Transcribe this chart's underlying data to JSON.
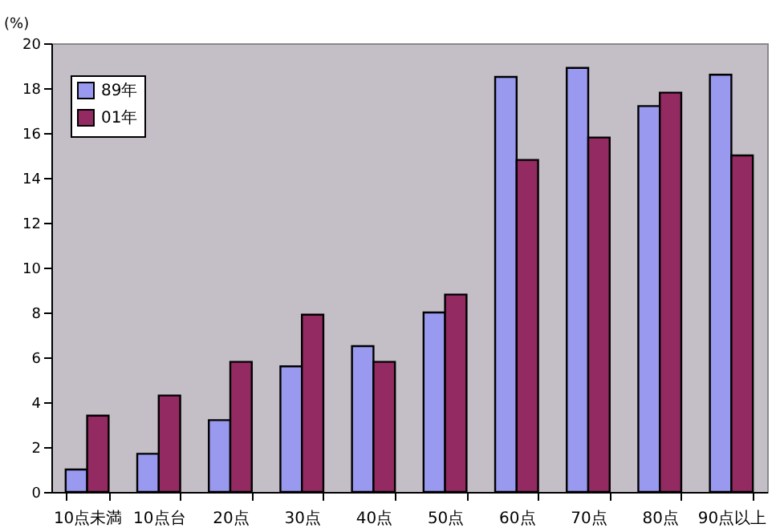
{
  "chart_data": {
    "type": "bar",
    "ylabel": "(%)",
    "categories": [
      "10点未満",
      "10点台",
      "20点",
      "30点",
      "40点",
      "50点",
      "60点",
      "70点",
      "80点",
      "90点以上"
    ],
    "series": [
      {
        "name": "89年",
        "color": "#9999f0",
        "values": [
          1.0,
          1.7,
          3.2,
          5.6,
          6.5,
          8.0,
          18.5,
          18.9,
          17.2,
          18.6
        ]
      },
      {
        "name": "01年",
        "color": "#932a62",
        "values": [
          3.4,
          4.3,
          5.8,
          7.9,
          5.8,
          8.8,
          14.8,
          15.8,
          17.8,
          15.0
        ]
      }
    ],
    "ylim": [
      0,
      20
    ],
    "yticks": [
      0,
      2,
      4,
      6,
      8,
      10,
      12,
      14,
      16,
      18,
      20
    ],
    "grid": false,
    "legend": "top left"
  }
}
